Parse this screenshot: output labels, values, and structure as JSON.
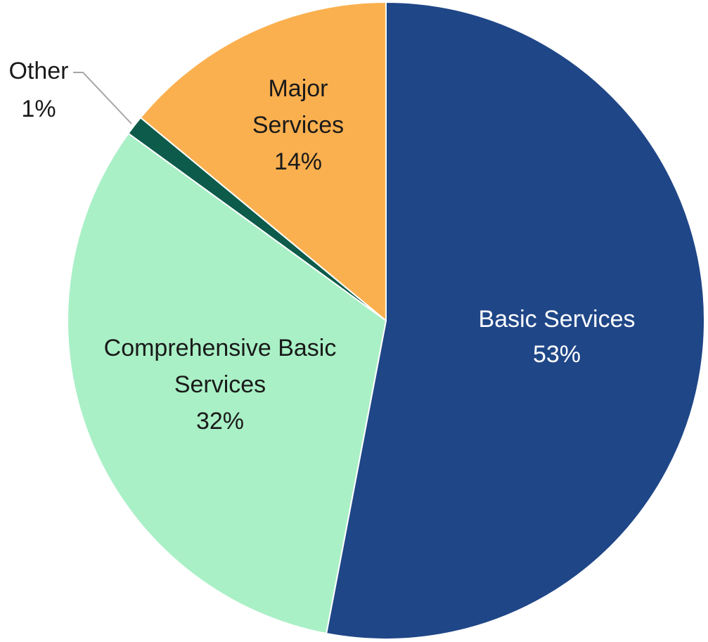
{
  "chart_data": {
    "type": "pie",
    "title": "",
    "slices": [
      {
        "name": "Basic Services",
        "value": 53,
        "label": "53%",
        "color": "#1f4687",
        "label_color": "#ffffff",
        "lines": [
          "Basic Services",
          "53%"
        ]
      },
      {
        "name": "Comprehensive Basic Services",
        "value": 32,
        "label": "32%",
        "color": "#a9f0c6",
        "label_color": "#1a1a1a",
        "lines": [
          "Comprehensive Basic",
          "Services",
          "32%"
        ]
      },
      {
        "name": "Other",
        "value": 1,
        "label": "1%",
        "color": "#0d5b4a",
        "label_color": "#1a1a1a",
        "lines": [
          "Other",
          "1%"
        ]
      },
      {
        "name": "Major Services",
        "value": 14,
        "label": "14%",
        "color": "#fbb04f",
        "label_color": "#1a1a1a",
        "lines": [
          "Major",
          "Services",
          "14%"
        ]
      }
    ],
    "legend": "none",
    "data_labels": "category-and-percent"
  }
}
